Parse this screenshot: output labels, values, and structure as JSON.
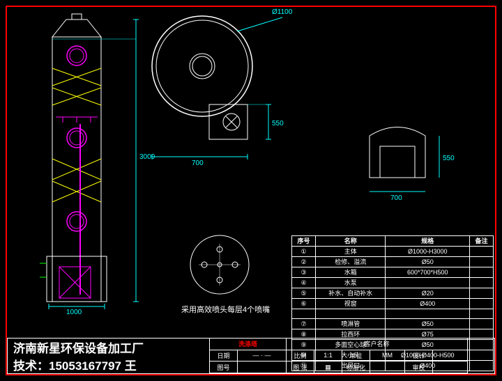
{
  "colors": {
    "bg": "#000000",
    "border": "#ff0000",
    "dim": "#00ffff",
    "body": "#ffffff",
    "center": "#ff00ff",
    "cross": "#ffff00",
    "green": "#00ff00"
  },
  "dims": {
    "d1100": "Ø1100",
    "h3000": "3000",
    "w1000": "1000",
    "w700": "700",
    "h550": "550",
    "w700b": "700",
    "h550b": "550"
  },
  "note": "采用高效喷头每层4个喷嘴",
  "parts": {
    "headers": [
      "序号",
      "名称",
      "规格",
      "备注"
    ],
    "rows": [
      [
        "①",
        "主体",
        "Ø1000-H3000",
        ""
      ],
      [
        "②",
        "检修、溢流",
        "Ø50",
        ""
      ],
      [
        "③",
        "水箱",
        "600*700*H500",
        ""
      ],
      [
        "④",
        "水泵",
        "",
        ""
      ],
      [
        "⑤",
        "补水、自动补水",
        "Ø20",
        ""
      ],
      [
        "⑥",
        "视窗",
        "Ø400",
        ""
      ],
      [
        "",
        "",
        "",
        ""
      ],
      [
        "⑦",
        "喷淋管",
        "Ø50",
        ""
      ],
      [
        "⑧",
        "拉西环",
        "Ø75",
        ""
      ],
      [
        "⑨",
        "多面空心球",
        "Ø50",
        ""
      ],
      [
        "⑩",
        "大小头",
        "Ø1000-Ø400-H500",
        ""
      ],
      [
        "⑪",
        "出风口",
        "Ø400",
        ""
      ]
    ]
  },
  "title": {
    "company": "济南新星环保设备加工厂",
    "tech": "技术：15053167797 王",
    "product": "洗涤塔",
    "fields": {
      "date": "日期",
      "drawing": "图号",
      "scale_lbl": "比例",
      "scale": "1:1",
      "unit_lbl": "单位",
      "unit": "MM",
      "design": "设计",
      "standard": "标准化",
      "review": "审校",
      "customer": "客户名称",
      "legend": "图 法"
    }
  }
}
